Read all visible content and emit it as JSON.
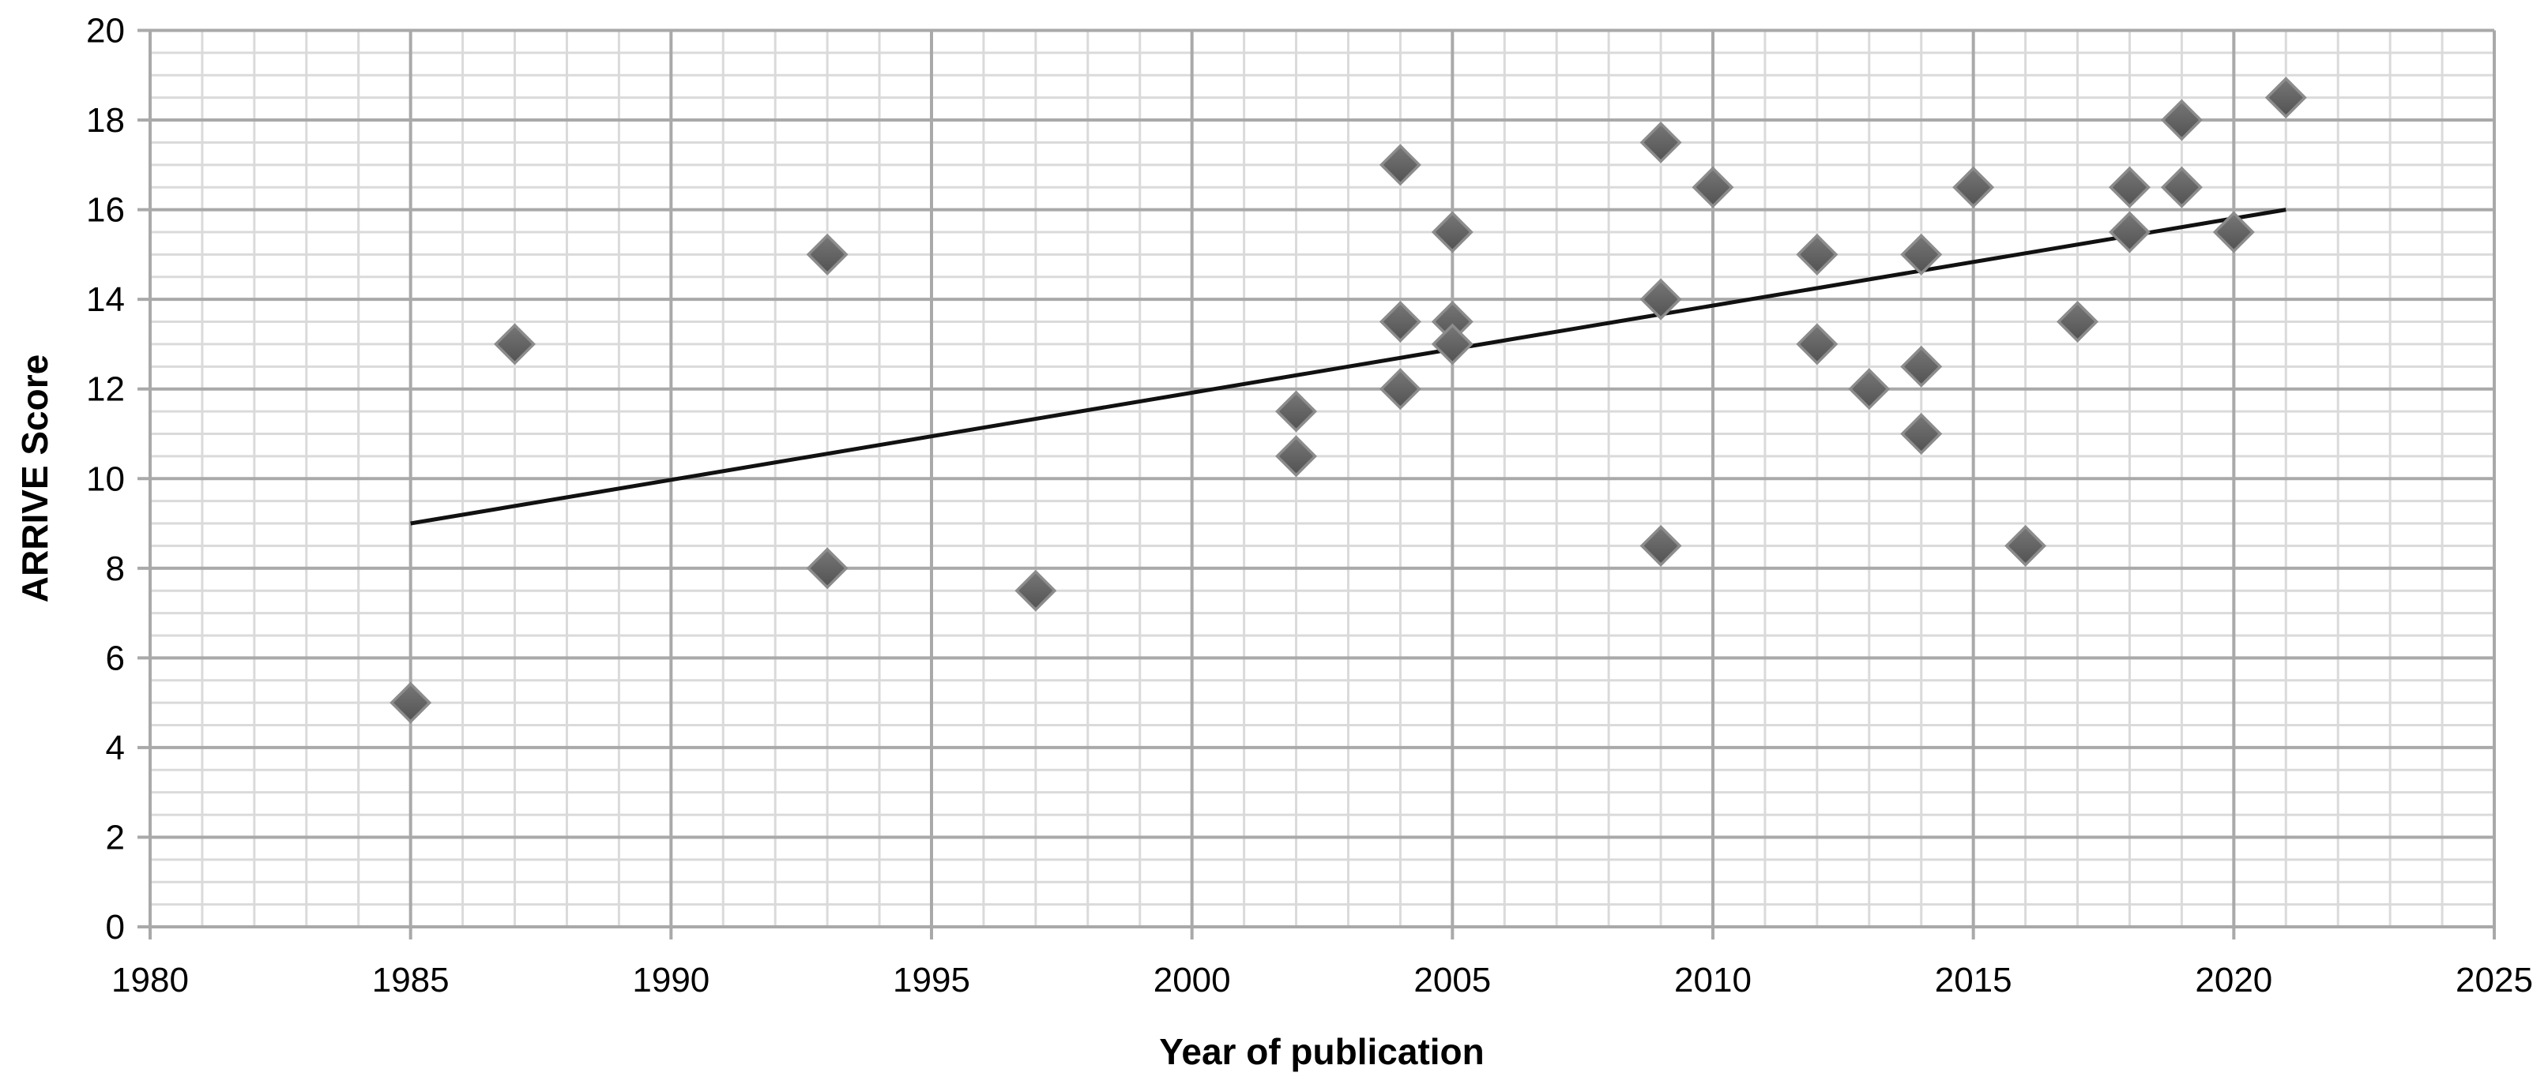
{
  "chart_data": {
    "type": "scatter",
    "title": "",
    "xlabel": "Year of publication",
    "ylabel": "ARRIVE Score",
    "xlim": [
      1980,
      2025
    ],
    "ylim": [
      0,
      20
    ],
    "x_major_tick_labels": [
      "1980",
      "1985",
      "1990",
      "1995",
      "2000",
      "2005",
      "2010",
      "2015",
      "2020",
      "2025"
    ],
    "x_major_tick_values": [
      1980,
      1985,
      1990,
      1995,
      2000,
      2005,
      2010,
      2015,
      2020,
      2025
    ],
    "x_minor_step": 1,
    "y_major_tick_labels": [
      "0",
      "2",
      "4",
      "6",
      "8",
      "10",
      "12",
      "14",
      "16",
      "18",
      "20"
    ],
    "y_major_tick_values": [
      0,
      2,
      4,
      6,
      8,
      10,
      12,
      14,
      16,
      18,
      20
    ],
    "y_minor_step": 0.5,
    "grid": "major and minor, both axes",
    "legend_position": "none",
    "marker": "diamond",
    "points": [
      {
        "x": 1985,
        "y": 5
      },
      {
        "x": 1987,
        "y": 13
      },
      {
        "x": 1993,
        "y": 15
      },
      {
        "x": 1993,
        "y": 8
      },
      {
        "x": 1997,
        "y": 7.5
      },
      {
        "x": 2002,
        "y": 11.5
      },
      {
        "x": 2002,
        "y": 10.5
      },
      {
        "x": 2004,
        "y": 17
      },
      {
        "x": 2004,
        "y": 13.5
      },
      {
        "x": 2004,
        "y": 12
      },
      {
        "x": 2005,
        "y": 15.5
      },
      {
        "x": 2005,
        "y": 13.5
      },
      {
        "x": 2005,
        "y": 13
      },
      {
        "x": 2009,
        "y": 17.5
      },
      {
        "x": 2009,
        "y": 14
      },
      {
        "x": 2009,
        "y": 8.5
      },
      {
        "x": 2010,
        "y": 16.5
      },
      {
        "x": 2012,
        "y": 15
      },
      {
        "x": 2012,
        "y": 13
      },
      {
        "x": 2013,
        "y": 12
      },
      {
        "x": 2014,
        "y": 15
      },
      {
        "x": 2014,
        "y": 12.5
      },
      {
        "x": 2014,
        "y": 11
      },
      {
        "x": 2015,
        "y": 16.5
      },
      {
        "x": 2016,
        "y": 8.5
      },
      {
        "x": 2017,
        "y": 13.5
      },
      {
        "x": 2018,
        "y": 16.5
      },
      {
        "x": 2018,
        "y": 15.5
      },
      {
        "x": 2019,
        "y": 18
      },
      {
        "x": 2019,
        "y": 16.5
      },
      {
        "x": 2020,
        "y": 15.5
      },
      {
        "x": 2021,
        "y": 18.5
      }
    ],
    "trendline": {
      "x1": 1985,
      "y1": 9,
      "x2": 2021,
      "y2": 16
    },
    "colors": {
      "background": "#ffffff",
      "major_grid": "#a9a9a9",
      "minor_grid": "#dadada",
      "axis_line": "#a9a9a9",
      "tick_label": "#000000",
      "axis_title": "#000000",
      "marker_fill_top": "#777777",
      "marker_fill_bottom": "#525252",
      "marker_border": "#8c8c8c",
      "trend_line": "#111111"
    }
  }
}
